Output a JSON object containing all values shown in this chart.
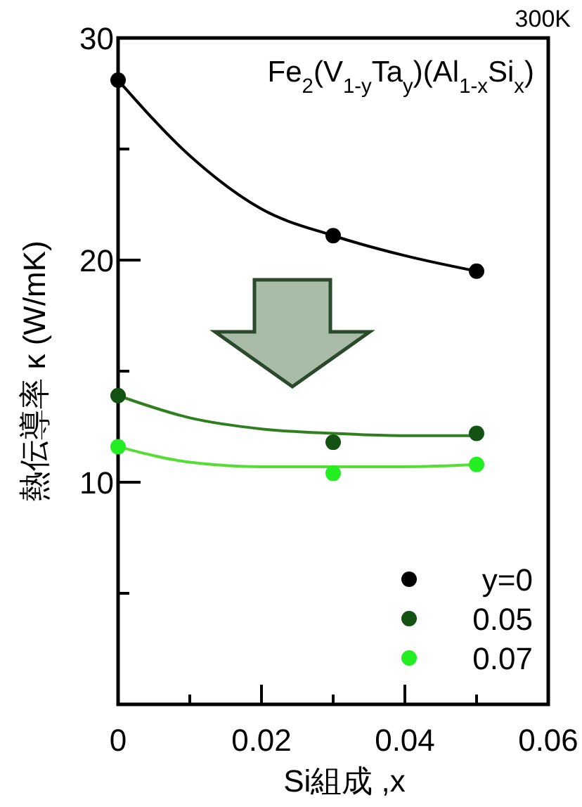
{
  "chart_data": {
    "type": "scatter",
    "xlabel": "Si組成 ,x",
    "ylabel": "熱伝導率 κ (W/mK)",
    "annotations": [
      "300K",
      "Fe$_{2}$(V$_{1-y}$Ta$_{y}$)(Al$_{1-x}$Si$_{x}$)"
    ],
    "xlim": [
      0,
      0.06
    ],
    "xticks": [
      0,
      {
        "value": 0.01,
        "label": null
      },
      0.02,
      {
        "value": 0.03,
        "label": null
      },
      0.04,
      {
        "value": 0.05,
        "label": null
      },
      0.06
    ],
    "ylim": [
      0,
      30
    ],
    "yticks": [
      {
        "value": 5,
        "label": null
      },
      10,
      {
        "value": 15,
        "label": null
      },
      20,
      {
        "value": 25,
        "label": null
      },
      30
    ],
    "grid": false,
    "legend": "bottom right",
    "marker": "circle",
    "series": [
      {
        "type": "line",
        "color": "#000000",
        "marker": "none",
        "x": [
          0,
          0.01,
          0.02,
          0.03,
          0.04,
          0.05
        ],
        "values": [
          28.1,
          24.7,
          22.3,
          21.1,
          20.2,
          19.5
        ]
      },
      {
        "type": "line",
        "color": "#2f7f1f",
        "marker": "none",
        "x": [
          0,
          0.01,
          0.02,
          0.03,
          0.04,
          0.05
        ],
        "values": [
          13.9,
          12.9,
          12.4,
          12.2,
          12.1,
          12.1
        ]
      },
      {
        "type": "line",
        "color": "#55dd33",
        "marker": "none",
        "x": [
          0,
          0.01,
          0.02,
          0.03,
          0.04,
          0.05
        ],
        "values": [
          11.6,
          10.9,
          10.7,
          10.7,
          10.7,
          10.8
        ]
      },
      {
        "name": "y=0",
        "color": "#000000",
        "x": [
          0,
          0.03,
          0.05
        ],
        "values": [
          28.1,
          21.1,
          19.5
        ]
      },
      {
        "name": "0.05",
        "color": "#145214",
        "x": [
          0,
          0.03,
          0.05
        ],
        "values": [
          13.9,
          11.8,
          12.2
        ]
      },
      {
        "name": "0.07",
        "color": "#22ee22",
        "x": [
          0,
          0.03,
          0.05
        ],
        "values": [
          11.6,
          10.4,
          10.8
        ]
      }
    ]
  }
}
